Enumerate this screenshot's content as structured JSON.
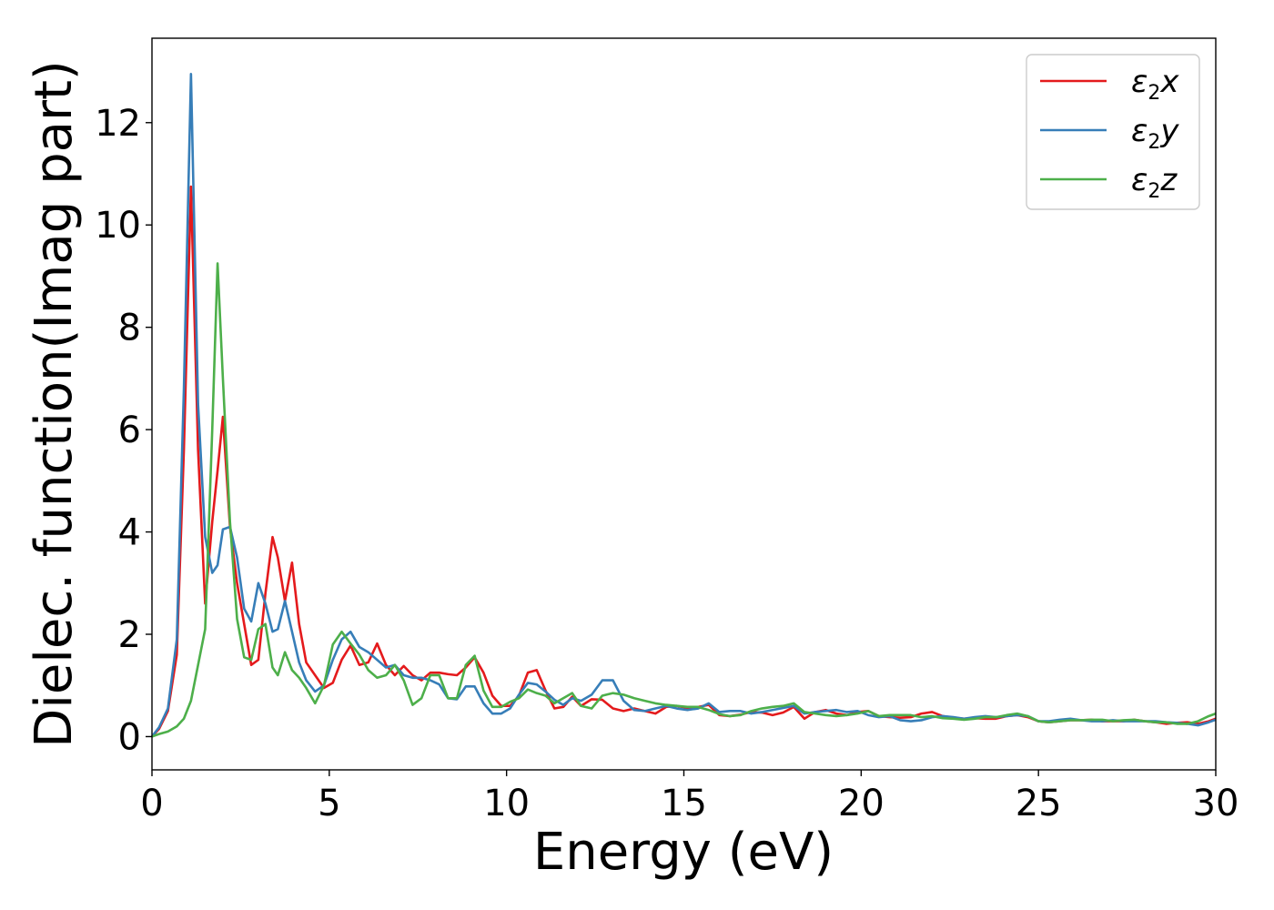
{
  "chart_data": {
    "type": "line",
    "title": "",
    "xlabel": "Energy (eV)",
    "ylabel": "Dielec. function(Imag part)",
    "xlim": [
      0,
      30
    ],
    "ylim": [
      -0.65,
      13.65
    ],
    "xticks": [
      0,
      5,
      10,
      15,
      20,
      25,
      30
    ],
    "yticks": [
      0,
      2,
      4,
      6,
      8,
      10,
      12
    ],
    "grid": false,
    "legend_position": "top-right",
    "x": [
      0,
      0.2,
      0.45,
      0.7,
      0.9,
      1.1,
      1.3,
      1.5,
      1.7,
      1.85,
      2.0,
      2.2,
      2.4,
      2.6,
      2.8,
      3.0,
      3.2,
      3.4,
      3.55,
      3.75,
      3.95,
      4.15,
      4.35,
      4.6,
      4.85,
      5.1,
      5.35,
      5.6,
      5.85,
      6.1,
      6.35,
      6.6,
      6.85,
      7.1,
      7.35,
      7.6,
      7.85,
      8.1,
      8.35,
      8.6,
      8.85,
      9.1,
      9.35,
      9.6,
      9.85,
      10.1,
      10.35,
      10.6,
      10.85,
      11.1,
      11.35,
      11.6,
      11.85,
      12.1,
      12.4,
      12.7,
      13.0,
      13.3,
      13.6,
      13.9,
      14.2,
      14.5,
      14.8,
      15.1,
      15.4,
      15.7,
      16.0,
      16.3,
      16.6,
      16.9,
      17.2,
      17.5,
      17.8,
      18.1,
      18.4,
      18.7,
      19.0,
      19.3,
      19.6,
      19.9,
      20.2,
      20.5,
      20.8,
      21.1,
      21.4,
      21.7,
      22.0,
      22.3,
      22.6,
      22.9,
      23.2,
      23.5,
      23.8,
      24.1,
      24.4,
      24.7,
      25.0,
      25.3,
      25.6,
      25.9,
      26.2,
      26.5,
      26.8,
      27.1,
      27.4,
      27.7,
      28.0,
      28.3,
      28.6,
      28.9,
      29.2,
      29.5,
      29.8,
      30.0
    ],
    "series": [
      {
        "name": "ε2x",
        "color": "#e41a1c",
        "values": [
          0,
          0.15,
          0.5,
          1.6,
          5.6,
          10.75,
          5.6,
          2.6,
          4.2,
          5.2,
          6.25,
          4.1,
          3.0,
          2.2,
          1.4,
          1.5,
          2.8,
          3.9,
          3.5,
          2.65,
          3.4,
          2.2,
          1.45,
          1.2,
          0.95,
          1.05,
          1.5,
          1.78,
          1.4,
          1.45,
          1.82,
          1.4,
          1.2,
          1.38,
          1.2,
          1.1,
          1.25,
          1.25,
          1.22,
          1.2,
          1.35,
          1.55,
          1.25,
          0.8,
          0.6,
          0.6,
          0.8,
          1.25,
          1.3,
          0.9,
          0.55,
          0.58,
          0.78,
          0.6,
          0.73,
          0.72,
          0.55,
          0.5,
          0.55,
          0.5,
          0.45,
          0.58,
          0.6,
          0.56,
          0.58,
          0.62,
          0.42,
          0.4,
          0.43,
          0.48,
          0.47,
          0.42,
          0.47,
          0.58,
          0.35,
          0.48,
          0.52,
          0.45,
          0.42,
          0.48,
          0.5,
          0.4,
          0.38,
          0.37,
          0.38,
          0.45,
          0.48,
          0.4,
          0.37,
          0.35,
          0.36,
          0.35,
          0.35,
          0.4,
          0.42,
          0.38,
          0.3,
          0.28,
          0.3,
          0.32,
          0.32,
          0.33,
          0.3,
          0.3,
          0.3,
          0.33,
          0.3,
          0.28,
          0.25,
          0.27,
          0.28,
          0.25,
          0.3,
          0.35
        ]
      },
      {
        "name": "ε2y",
        "color": "#377eb8",
        "values": [
          0,
          0.18,
          0.55,
          1.9,
          6.8,
          12.95,
          6.5,
          3.9,
          3.2,
          3.35,
          4.05,
          4.1,
          3.5,
          2.5,
          2.25,
          3.0,
          2.6,
          2.05,
          2.1,
          2.65,
          2.05,
          1.45,
          1.1,
          0.88,
          1.0,
          1.5,
          1.9,
          2.05,
          1.75,
          1.65,
          1.5,
          1.35,
          1.4,
          1.2,
          1.15,
          1.15,
          1.1,
          1.02,
          0.75,
          0.73,
          0.98,
          0.98,
          0.65,
          0.45,
          0.45,
          0.55,
          0.82,
          1.05,
          1.02,
          0.88,
          0.72,
          0.62,
          0.75,
          0.7,
          0.82,
          1.1,
          1.1,
          0.7,
          0.52,
          0.5,
          0.55,
          0.6,
          0.55,
          0.52,
          0.55,
          0.65,
          0.48,
          0.5,
          0.5,
          0.45,
          0.48,
          0.52,
          0.56,
          0.6,
          0.45,
          0.48,
          0.5,
          0.52,
          0.48,
          0.5,
          0.42,
          0.38,
          0.4,
          0.32,
          0.3,
          0.32,
          0.38,
          0.4,
          0.38,
          0.35,
          0.38,
          0.4,
          0.38,
          0.4,
          0.42,
          0.4,
          0.3,
          0.3,
          0.33,
          0.35,
          0.32,
          0.3,
          0.3,
          0.32,
          0.3,
          0.3,
          0.3,
          0.3,
          0.28,
          0.27,
          0.25,
          0.22,
          0.28,
          0.33
        ]
      },
      {
        "name": "ε2z",
        "color": "#4daf4a",
        "values": [
          0,
          0.05,
          0.1,
          0.2,
          0.35,
          0.7,
          1.4,
          2.1,
          6.0,
          9.25,
          7.0,
          4.2,
          2.3,
          1.55,
          1.5,
          2.1,
          2.2,
          1.35,
          1.2,
          1.65,
          1.3,
          1.15,
          0.95,
          0.65,
          1.0,
          1.8,
          2.05,
          1.82,
          1.6,
          1.3,
          1.15,
          1.2,
          1.4,
          1.1,
          0.62,
          0.75,
          1.2,
          1.2,
          0.75,
          0.75,
          1.4,
          1.58,
          0.9,
          0.58,
          0.58,
          0.68,
          0.75,
          0.92,
          0.85,
          0.8,
          0.65,
          0.75,
          0.85,
          0.6,
          0.55,
          0.8,
          0.85,
          0.82,
          0.75,
          0.7,
          0.65,
          0.62,
          0.6,
          0.58,
          0.58,
          0.52,
          0.44,
          0.4,
          0.42,
          0.5,
          0.55,
          0.58,
          0.6,
          0.65,
          0.48,
          0.45,
          0.42,
          0.4,
          0.42,
          0.45,
          0.5,
          0.4,
          0.42,
          0.42,
          0.42,
          0.38,
          0.4,
          0.36,
          0.35,
          0.33,
          0.35,
          0.38,
          0.38,
          0.42,
          0.45,
          0.4,
          0.3,
          0.28,
          0.3,
          0.32,
          0.32,
          0.33,
          0.33,
          0.3,
          0.32,
          0.33,
          0.3,
          0.28,
          0.28,
          0.25,
          0.25,
          0.3,
          0.4,
          0.45
        ]
      }
    ]
  }
}
